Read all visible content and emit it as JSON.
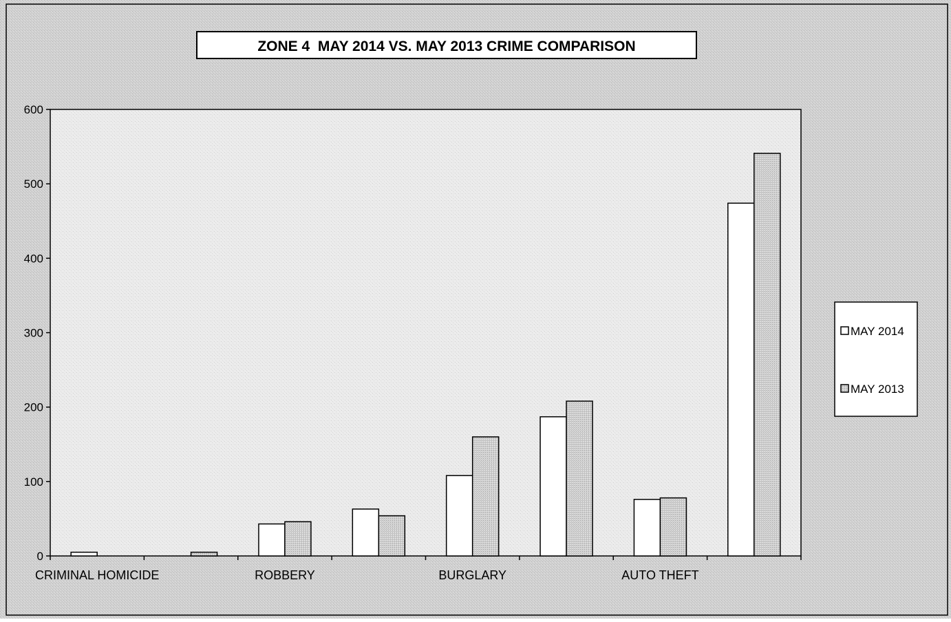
{
  "chart_data": {
    "type": "bar",
    "title": "ZONE 4  MAY 2014 VS. MAY 2013 CRIME COMPARISON",
    "xlabel": "",
    "ylabel": "",
    "ylim": [
      0,
      600
    ],
    "y_ticks": [
      0,
      100,
      200,
      300,
      400,
      500,
      600
    ],
    "grid": false,
    "legend_position": "right",
    "x_tick_labels": [
      {
        "label": "CRIMINAL HOMICIDE",
        "category_index": 0
      },
      {
        "label": "ROBBERY",
        "category_index": 2
      },
      {
        "label": "BURGLARY",
        "category_index": 4
      },
      {
        "label": "AUTO THEFT",
        "category_index": 6
      }
    ],
    "categories": [
      "CRIMINAL HOMICIDE",
      "",
      "ROBBERY",
      "",
      "BURGLARY",
      "",
      "AUTO THEFT",
      ""
    ],
    "series": [
      {
        "name": "MAY 2014",
        "color": "#ffffff",
        "values": [
          5,
          0,
          43,
          63,
          108,
          187,
          76,
          474
        ]
      },
      {
        "name": "MAY 2013",
        "color": "#c8c8c8",
        "values": [
          0,
          5,
          46,
          54,
          160,
          208,
          78,
          541
        ]
      }
    ]
  },
  "colors": {
    "background": "#d6d6d6",
    "plot_area": "#ebebeb",
    "axis": "#000000"
  }
}
